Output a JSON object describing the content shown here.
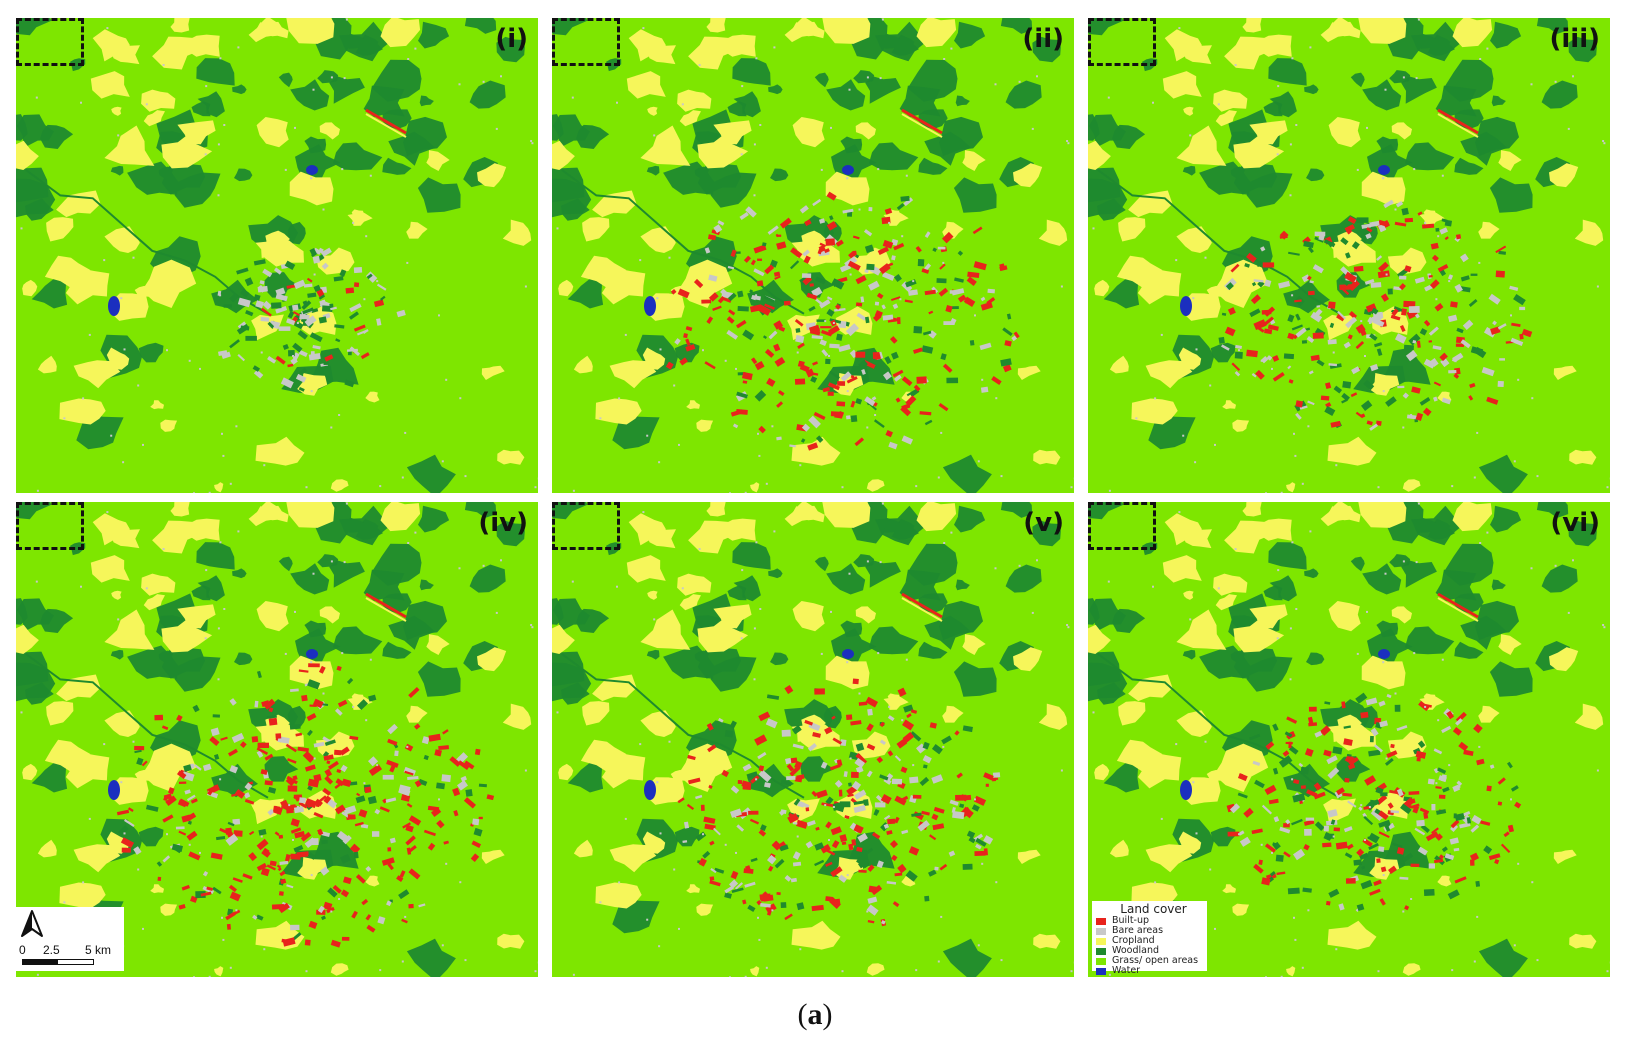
{
  "figure": {
    "caption_open": "(",
    "caption_letter": "a",
    "caption_close": ")"
  },
  "panels": [
    {
      "label": "(i)",
      "builtup_level": 0.15
    },
    {
      "label": "(ii)",
      "builtup_level": 0.9
    },
    {
      "label": "(iii)",
      "builtup_level": 0.7
    },
    {
      "label": "(iv)",
      "builtup_level": 1.0
    },
    {
      "label": "(v)",
      "builtup_level": 0.8
    },
    {
      "label": "(vi)",
      "builtup_level": 0.65
    }
  ],
  "legend": {
    "title": "Land cover",
    "items": [
      {
        "label": "Built-up",
        "color": "#e8231c"
      },
      {
        "label": "Bare areas",
        "color": "#c8c8c8"
      },
      {
        "label": "Cropland",
        "color": "#f6f65a"
      },
      {
        "label": "Woodland",
        "color": "#1f8a2e"
      },
      {
        "label": "Grass/ open areas",
        "color": "#7ee600"
      },
      {
        "label": "Water",
        "color": "#1b2fbf"
      }
    ]
  },
  "scalebar": {
    "tick_0": "0",
    "tick_1": "2.5",
    "tick_2": "5 km"
  },
  "colors": {
    "grass": "#7ee600",
    "woodland": "#1f8a2e",
    "cropland": "#f6f65a",
    "builtup": "#e8231c",
    "bare": "#c8c8c8",
    "water": "#1b2fbf"
  }
}
